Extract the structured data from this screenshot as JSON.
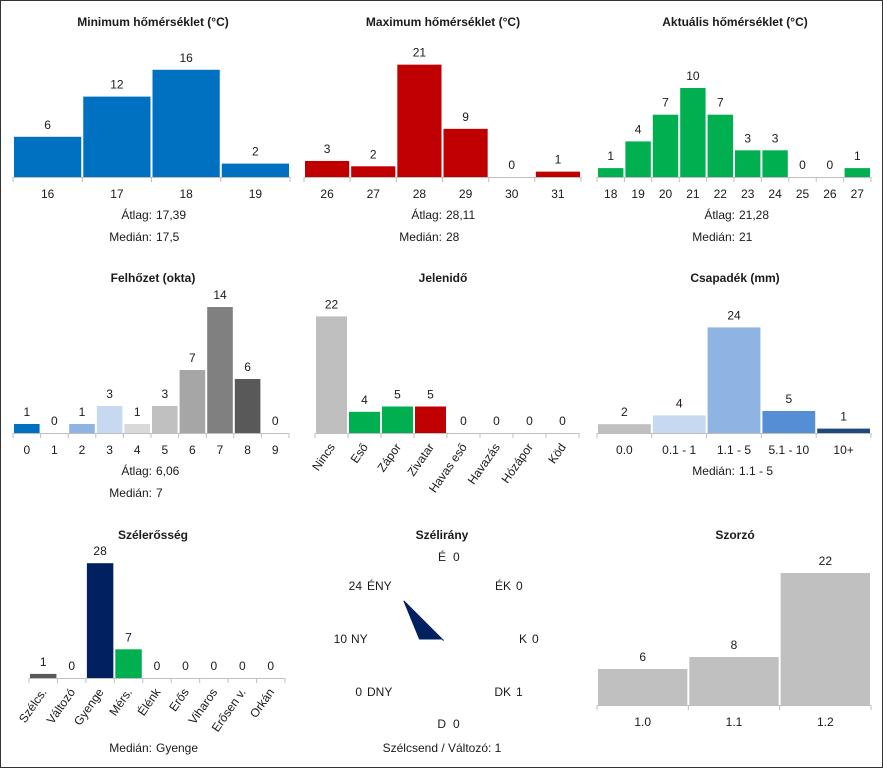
{
  "chart_data": [
    {
      "type": "bar",
      "title": "Minimum hőmérséklet (°C)",
      "categories": [
        "16",
        "17",
        "18",
        "19"
      ],
      "values": [
        6,
        12,
        16,
        2
      ],
      "colors": [
        "#0070c0",
        "#0070c0",
        "#0070c0",
        "#0070c0"
      ],
      "stats": [
        {
          "label": "Átlag:",
          "value": "17,39"
        },
        {
          "label": "Medián:",
          "value": "17,5"
        }
      ]
    },
    {
      "type": "bar",
      "title": "Maximum hőmérséklet (°C)",
      "categories": [
        "26",
        "27",
        "28",
        "29",
        "30",
        "31"
      ],
      "values": [
        3,
        2,
        21,
        9,
        0,
        1
      ],
      "colors": [
        "#c00000",
        "#c00000",
        "#c00000",
        "#c00000",
        "#c00000",
        "#c00000"
      ],
      "stats": [
        {
          "label": "Átlag:",
          "value": "28,11"
        },
        {
          "label": "Medián:",
          "value": "28"
        }
      ]
    },
    {
      "type": "bar",
      "title": "Aktuális hőmérséklet (°C)",
      "categories": [
        "18",
        "19",
        "20",
        "21",
        "22",
        "23",
        "24",
        "25",
        "26",
        "27"
      ],
      "values": [
        1,
        4,
        7,
        10,
        7,
        3,
        3,
        0,
        0,
        1
      ],
      "colors": [
        "#00b050",
        "#00b050",
        "#00b050",
        "#00b050",
        "#00b050",
        "#00b050",
        "#00b050",
        "#00b050",
        "#00b050",
        "#00b050"
      ],
      "stats": [
        {
          "label": "Átlag:",
          "value": "21,28"
        },
        {
          "label": "Medián:",
          "value": "21"
        }
      ]
    },
    {
      "type": "bar",
      "title": "Felhőzet (okta)",
      "categories": [
        "0",
        "1",
        "2",
        "3",
        "4",
        "5",
        "6",
        "7",
        "8",
        "9"
      ],
      "values": [
        1,
        0,
        1,
        3,
        1,
        3,
        7,
        14,
        6,
        0
      ],
      "colors": [
        "#0070c0",
        "#b0c4de",
        "#8eb4e3",
        "#c6d9f1",
        "#d9d9d9",
        "#c0c0c0",
        "#a6a6a6",
        "#808080",
        "#595959",
        "#404040"
      ],
      "stats": [
        {
          "label": "Átlag:",
          "value": "6,06"
        },
        {
          "label": "Medián:",
          "value": "7"
        }
      ]
    },
    {
      "type": "bar",
      "title": "Jelenidő",
      "categories": [
        "Nincs",
        "Eső",
        "Zápor",
        "Zivatar",
        "Havas eső",
        "Havazás",
        "Hózápor",
        "Köd"
      ],
      "values": [
        22,
        4,
        5,
        5,
        0,
        0,
        0,
        0
      ],
      "colors": [
        "#bfbfbf",
        "#00b050",
        "#00b050",
        "#c00000",
        "#7f7f7f",
        "#7f7f7f",
        "#7f7f7f",
        "#7f7f7f"
      ],
      "stats": []
    },
    {
      "type": "bar",
      "title": "Csapadék (mm)",
      "categories": [
        "0.0",
        "0.1 - 1",
        "1.1 - 5",
        "5.1 - 10",
        "10+"
      ],
      "values": [
        2,
        4,
        24,
        5,
        1
      ],
      "colors": [
        "#bfbfbf",
        "#c6d9f1",
        "#8eb4e3",
        "#558ed5",
        "#1f497d"
      ],
      "stats": [
        {
          "label": "Medián:",
          "value": "1.1 - 5"
        }
      ]
    },
    {
      "type": "bar",
      "title": "Szélerősség",
      "categories": [
        "Szélcs.",
        "Változó",
        "Gyenge",
        "Mérs.",
        "Élénk",
        "Erős",
        "Viharos",
        "Erősen v.",
        "Orkán"
      ],
      "values": [
        1,
        0,
        28,
        7,
        0,
        0,
        0,
        0,
        0
      ],
      "colors": [
        "#595959",
        "#7f7f7f",
        "#002060",
        "#00b050",
        "#ffc000",
        "#ff0000",
        "#c00000",
        "#7030a0",
        "#000000"
      ],
      "stats": [
        {
          "label": "Medián:",
          "value": "Gyenge"
        }
      ]
    },
    {
      "type": "radar",
      "title": "Szélirány",
      "directions": [
        {
          "label": "É",
          "value": 0
        },
        {
          "label": "ÉK",
          "value": 0
        },
        {
          "label": "K",
          "value": 0
        },
        {
          "label": "DK",
          "value": 1
        },
        {
          "label": "D",
          "value": 0
        },
        {
          "label": "DNY",
          "value": 0
        },
        {
          "label": "NY",
          "value": 10
        },
        {
          "label": "ÉNY",
          "value": 24
        }
      ],
      "max": 24,
      "color": "#002060",
      "footer": "Szélcsend / Változó: 1"
    },
    {
      "type": "bar",
      "title": "Szorzó",
      "categories": [
        "1.0",
        "1.1",
        "1.2"
      ],
      "values": [
        6,
        8,
        22
      ],
      "colors": [
        "#c0c0c0",
        "#c0c0c0",
        "#c0c0c0"
      ],
      "stats": []
    }
  ]
}
